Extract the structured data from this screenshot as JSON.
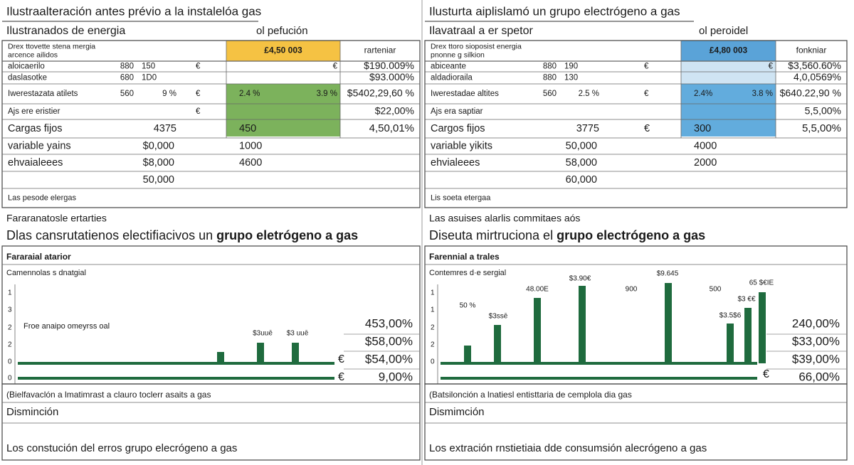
{
  "panels": [
    {
      "title": "Ilustraalteración antes prévio a la instalelóa gas",
      "subtitle": "Ilustranados de energia",
      "period": "ol pefución",
      "rows": [
        {
          "label": "Drex ttovette stena mergia",
          "label2": "arcence ailidos",
          "hl_c": "£4,50 003",
          "hdr": "rarteniar"
        },
        {
          "label": "aloicaerilo",
          "n1": "880",
          "n2": "150",
          "eur": "€",
          "hl_r": "€",
          "right": "$190.009%"
        },
        {
          "label": "daslasotke",
          "n1": "680",
          "n2": "1D0",
          "right": "$93.000%"
        },
        {
          "label": "Iwerestazata atilets",
          "n1": "560",
          "n3": "9 %",
          "eur": "€",
          "hl_l": "2.4 %",
          "hl_r": "3.9 %",
          "right": "$5402,29,60 %"
        },
        {
          "label": "Ajs ere eristier",
          "eur": "€",
          "right": "$22,00%"
        },
        {
          "label": "Cargas fijos",
          "n3": "4375",
          "hl_l": "450",
          "right": "4,50,01%"
        },
        {
          "label": "variable yains",
          "mid": "$0,000",
          "hl_l": "1000"
        },
        {
          "label": "ehvaialeees",
          "mid": "$8,000",
          "hl_l": "4600"
        },
        {
          "mid": "50,000"
        },
        {
          "label": "Las pesode elergas"
        }
      ],
      "section": "Fararanatosle ertarties",
      "headline": "Dlas cansrutatienos electifiacivos un ",
      "headline_bold": "grupo eletrógeno a gas",
      "chart": {
        "title": "Fararaial atarior",
        "subtitle": "Camennolas s dnatgial",
        "axis_labels": [
          "1",
          "3",
          "2",
          "2",
          "0",
          "0"
        ],
        "legend": "Froe anaipo omeyrss oal",
        "bar_labels": [
          "$3uuē",
          "$3 uuē"
        ],
        "side_values": [
          "453,00%",
          "$58,00%",
          "$54,00%",
          "9,00%"
        ],
        "currency": [
          "€",
          "€"
        ]
      },
      "footer": {
        "note": "(Bielfavaclón a lmatimrast a clauro toclerr asaits a gas",
        "label": "Disminción",
        "caption": "Los constución del erros grupo elecrógeno a gas"
      }
    },
    {
      "title": "Ilusturta aiplislamó un grupo electrógeno a gas",
      "subtitle": "Ilavatraal a er spetor",
      "period": "ol peroidel",
      "rows": [
        {
          "label": "Drex ttoro sioposist energia",
          "label2": "pnonne g silkion",
          "hl_c": "£4,80 003",
          "hdr": "fonkniar"
        },
        {
          "label": "abiceante",
          "n1": "880",
          "n2": "190",
          "eur": "€",
          "hl_r": "€",
          "right": "$3,560.60%"
        },
        {
          "label": "aldadioraila",
          "n1": "880",
          "n2": "130",
          "right": "4,0,0569%"
        },
        {
          "label": "Iwerestadae altites",
          "n1": "560",
          "n3": "2.5 %",
          "eur": "€",
          "hl_l": "2.4%",
          "hl_r": "3.8 %",
          "right": "$640.22,90 %"
        },
        {
          "label": "Ajs era saptiar",
          "right": "5,5,00%"
        },
        {
          "label": "Cargos fijos",
          "n3": "3775",
          "eur": "€",
          "hl_l": "300",
          "right": "5,5,00%"
        },
        {
          "label": "variable yikits",
          "mid": "50,000",
          "hl_l": "4000"
        },
        {
          "label": "ehvialeees",
          "mid": "58,000",
          "hl_l": "2000"
        },
        {
          "mid": "60,000"
        },
        {
          "label": "Lis soeta etergaa"
        }
      ],
      "section": "Las asuises alarlis commitaes aós",
      "headline": "Diseuta mirtruciona el ",
      "headline_bold": "grupo electrógeno a gas",
      "chart": {
        "title": "Farennial a trales",
        "subtitle": "Contemres d·e sergial",
        "axis_labels": [
          "1",
          "1",
          "2",
          "2",
          "0"
        ],
        "bar_labels": [
          "50 %",
          "$3ssē",
          "48.00E",
          "$3.90€",
          "900",
          "$9.645",
          "500",
          "$3.5$6",
          "$3 €€",
          "65 $€IE"
        ],
        "side_values": [
          "240,00%",
          "$33,00%",
          "$39,00%",
          "66,00%"
        ],
        "currency": [
          "€"
        ]
      },
      "footer": {
        "note": "(Batsilonción a lnatiesl entisttaria de cemplola dia gas",
        "label": "Dismimción",
        "caption": "Los extración rnstietiaia dde consumsión alecrógeno a gas"
      }
    }
  ]
}
